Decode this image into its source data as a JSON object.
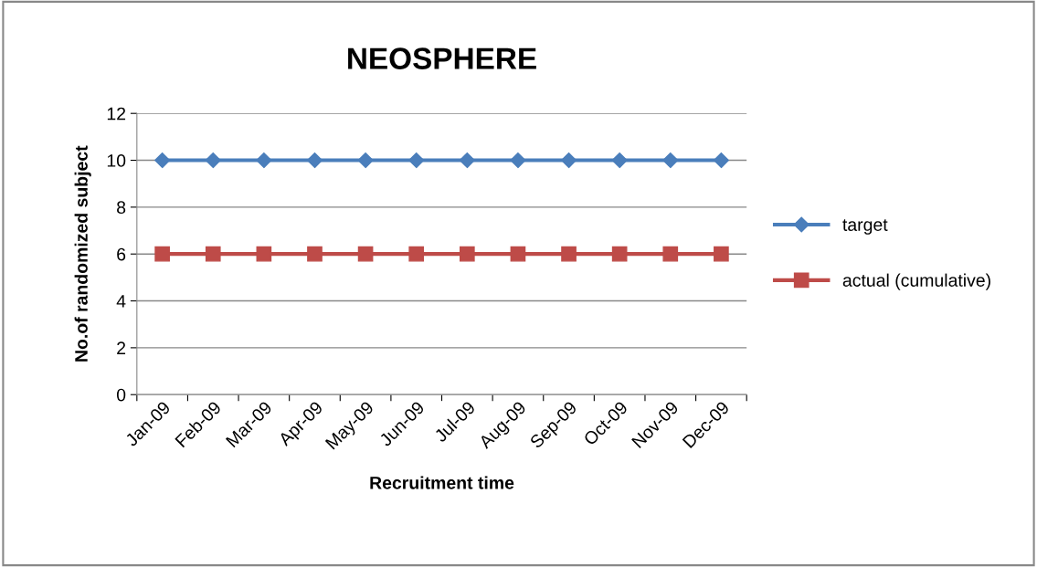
{
  "chart_data": {
    "type": "line",
    "title": "NEOSPHERE",
    "xlabel": "Recruitment time",
    "ylabel": "No.of randomized subject",
    "categories": [
      "Jan-09",
      "Feb-09",
      "Mar-09",
      "Apr-09",
      "May-09",
      "Jun-09",
      "Jul-09",
      "Aug-09",
      "Sep-09",
      "Oct-09",
      "Nov-09",
      "Dec-09"
    ],
    "series": [
      {
        "name": "target",
        "color": "#4a7ebb",
        "marker": "diamond",
        "values": [
          10,
          10,
          10,
          10,
          10,
          10,
          10,
          10,
          10,
          10,
          10,
          10
        ]
      },
      {
        "name": "actual (cumulative)",
        "color": "#be4b48",
        "marker": "square",
        "values": [
          6,
          6,
          6,
          6,
          6,
          6,
          6,
          6,
          6,
          6,
          6,
          6
        ]
      }
    ],
    "ylim": [
      0,
      12
    ],
    "yticks": [
      0,
      2,
      4,
      6,
      8,
      10,
      12
    ],
    "grid": "y",
    "legend": "right",
    "line_style": "solid"
  }
}
